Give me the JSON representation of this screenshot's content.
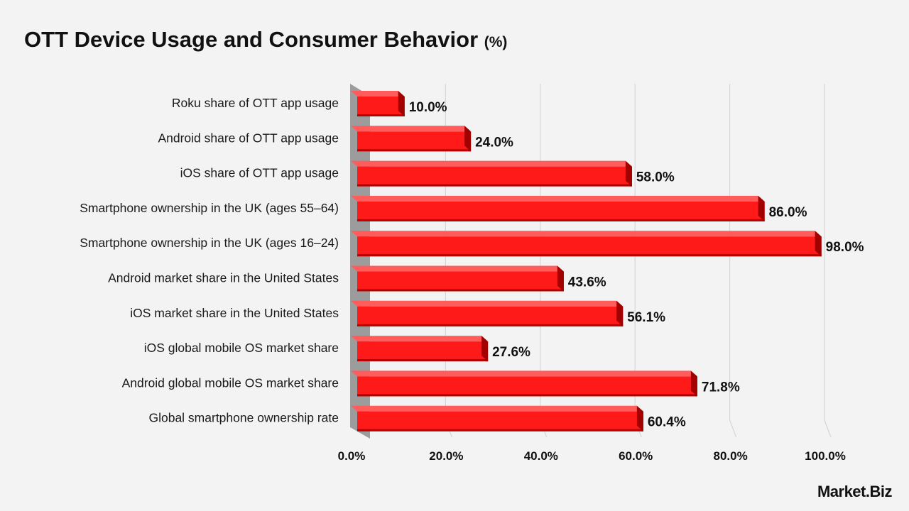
{
  "title": "OTT Device Usage and Consumer Behavior",
  "title_unit": "(%)",
  "brand": "Market.Biz",
  "colors": {
    "bar_front": "#ff1a1a",
    "bar_top": "#ff5c5c",
    "bar_side": "#a30000",
    "wall": "#9c9c9c",
    "grid": "#d6d6d6",
    "text": "#111111"
  },
  "chart_data": {
    "type": "bar",
    "orientation": "horizontal",
    "categories": [
      "Roku share of OTT app usage",
      "Android share of OTT app usage",
      "iOS share of OTT app usage",
      "Smartphone ownership in the UK (ages 55–64)",
      "Smartphone ownership in the UK (ages 16–24)",
      "Android market share in the United States",
      "iOS market share in the United States",
      "iOS global mobile OS market share",
      "Android global mobile OS market share",
      "Global smartphone ownership rate"
    ],
    "values": [
      10.0,
      24.0,
      58.0,
      86.0,
      98.0,
      43.6,
      56.1,
      27.6,
      71.8,
      60.4
    ],
    "value_labels": [
      "10.0%",
      "24.0%",
      "58.0%",
      "86.0%",
      "98.0%",
      "43.6%",
      "56.1%",
      "27.6%",
      "71.8%",
      "60.4%"
    ],
    "xlim": [
      0,
      100
    ],
    "x_ticks": [
      0,
      20,
      40,
      60,
      80,
      100
    ],
    "x_tick_labels": [
      "0.0%",
      "20.0%",
      "40.0%",
      "60.0%",
      "80.0%",
      "100.0%"
    ],
    "grid": true,
    "style": "3d"
  }
}
